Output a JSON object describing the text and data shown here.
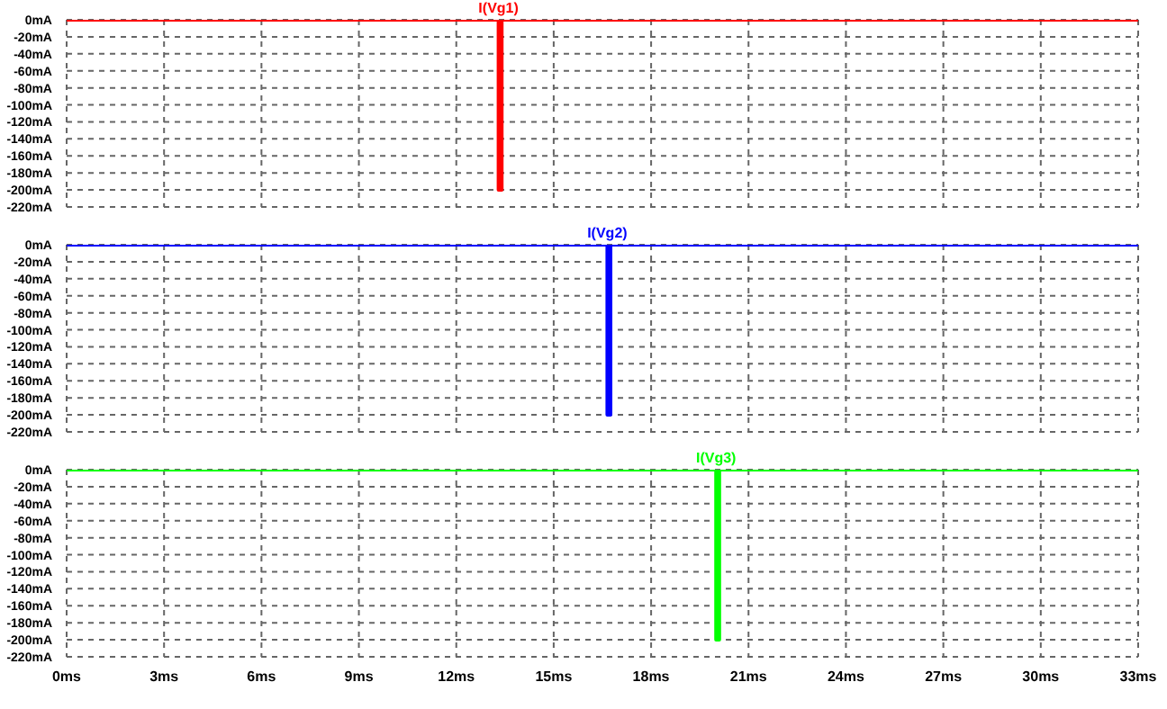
{
  "chart_data": [
    {
      "type": "line",
      "series": [
        {
          "name": "I(Vg1)",
          "color": "#ff0000",
          "x": [
            0,
            13.3,
            13.3,
            13.4,
            13.4,
            33
          ],
          "values": [
            0,
            0,
            -200,
            -200,
            0,
            0
          ]
        }
      ],
      "xlim": [
        0,
        33
      ],
      "xticks": [
        {
          "value": 0,
          "label": null
        },
        {
          "value": 3,
          "label": null
        },
        {
          "value": 6,
          "label": null
        },
        {
          "value": 9,
          "label": null
        },
        {
          "value": 12,
          "label": null
        },
        {
          "value": 15,
          "label": null
        },
        {
          "value": 18,
          "label": null
        },
        {
          "value": 21,
          "label": null
        },
        {
          "value": 24,
          "label": null
        },
        {
          "value": 27,
          "label": null
        },
        {
          "value": 30,
          "label": null
        },
        {
          "value": 33,
          "label": null
        }
      ],
      "ylim": [
        -220,
        0
      ],
      "yticks": [
        {
          "value": 0,
          "label": "0mA"
        },
        {
          "value": -20,
          "label": "-20mA"
        },
        {
          "value": -40,
          "label": "-40mA"
        },
        {
          "value": -60,
          "label": "-60mA"
        },
        {
          "value": -80,
          "label": "-80mA"
        },
        {
          "value": -100,
          "label": "-100mA"
        },
        {
          "value": -120,
          "label": "-120mA"
        },
        {
          "value": -140,
          "label": "-140mA"
        },
        {
          "value": -160,
          "label": "-160mA"
        },
        {
          "value": -180,
          "label": "-180mA"
        },
        {
          "value": -200,
          "label": "-200mA"
        },
        {
          "value": -220,
          "label": "-220mA"
        }
      ],
      "grid": true,
      "marker": "none",
      "line_style": "solid",
      "tick_labels": "y"
    },
    {
      "type": "line",
      "series": [
        {
          "name": "I(Vg2)",
          "color": "#0000ff",
          "x": [
            0,
            16.65,
            16.65,
            16.75,
            16.75,
            33
          ],
          "values": [
            0,
            0,
            -200,
            -200,
            0,
            0
          ]
        }
      ],
      "xlim": [
        0,
        33
      ],
      "xticks": [
        {
          "value": 0,
          "label": null
        },
        {
          "value": 3,
          "label": null
        },
        {
          "value": 6,
          "label": null
        },
        {
          "value": 9,
          "label": null
        },
        {
          "value": 12,
          "label": null
        },
        {
          "value": 15,
          "label": null
        },
        {
          "value": 18,
          "label": null
        },
        {
          "value": 21,
          "label": null
        },
        {
          "value": 24,
          "label": null
        },
        {
          "value": 27,
          "label": null
        },
        {
          "value": 30,
          "label": null
        },
        {
          "value": 33,
          "label": null
        }
      ],
      "ylim": [
        -220,
        0
      ],
      "yticks": [
        {
          "value": 0,
          "label": "0mA"
        },
        {
          "value": -20,
          "label": "-20mA"
        },
        {
          "value": -40,
          "label": "-40mA"
        },
        {
          "value": -60,
          "label": "-60mA"
        },
        {
          "value": -80,
          "label": "-80mA"
        },
        {
          "value": -100,
          "label": "-100mA"
        },
        {
          "value": -120,
          "label": "-120mA"
        },
        {
          "value": -140,
          "label": "-140mA"
        },
        {
          "value": -160,
          "label": "-160mA"
        },
        {
          "value": -180,
          "label": "-180mA"
        },
        {
          "value": -200,
          "label": "-200mA"
        },
        {
          "value": -220,
          "label": "-220mA"
        }
      ],
      "grid": true,
      "marker": "none",
      "line_style": "solid",
      "tick_labels": "y"
    },
    {
      "type": "line",
      "series": [
        {
          "name": "I(Vg3)",
          "color": "#00ff00",
          "x": [
            0,
            20,
            20,
            20.1,
            20.1,
            33
          ],
          "values": [
            0,
            0,
            -200,
            -200,
            0,
            0
          ]
        }
      ],
      "xlim": [
        0,
        33
      ],
      "xticks": [
        {
          "value": 0,
          "label": "0ms"
        },
        {
          "value": 3,
          "label": "3ms"
        },
        {
          "value": 6,
          "label": "6ms"
        },
        {
          "value": 9,
          "label": "9ms"
        },
        {
          "value": 12,
          "label": "12ms"
        },
        {
          "value": 15,
          "label": "15ms"
        },
        {
          "value": 18,
          "label": "18ms"
        },
        {
          "value": 21,
          "label": "21ms"
        },
        {
          "value": 24,
          "label": "24ms"
        },
        {
          "value": 27,
          "label": "27ms"
        },
        {
          "value": 30,
          "label": "30ms"
        },
        {
          "value": 33,
          "label": "33ms"
        }
      ],
      "ylim": [
        -220,
        0
      ],
      "yticks": [
        {
          "value": 0,
          "label": "0mA"
        },
        {
          "value": -20,
          "label": "-20mA"
        },
        {
          "value": -40,
          "label": "-40mA"
        },
        {
          "value": -60,
          "label": "-60mA"
        },
        {
          "value": -80,
          "label": "-80mA"
        },
        {
          "value": -100,
          "label": "-100mA"
        },
        {
          "value": -120,
          "label": "-120mA"
        },
        {
          "value": -140,
          "label": "-140mA"
        },
        {
          "value": -160,
          "label": "-160mA"
        },
        {
          "value": -180,
          "label": "-180mA"
        },
        {
          "value": -200,
          "label": "-200mA"
        },
        {
          "value": -220,
          "label": "-220mA"
        }
      ],
      "grid": true,
      "marker": "none",
      "line_style": "solid"
    }
  ]
}
